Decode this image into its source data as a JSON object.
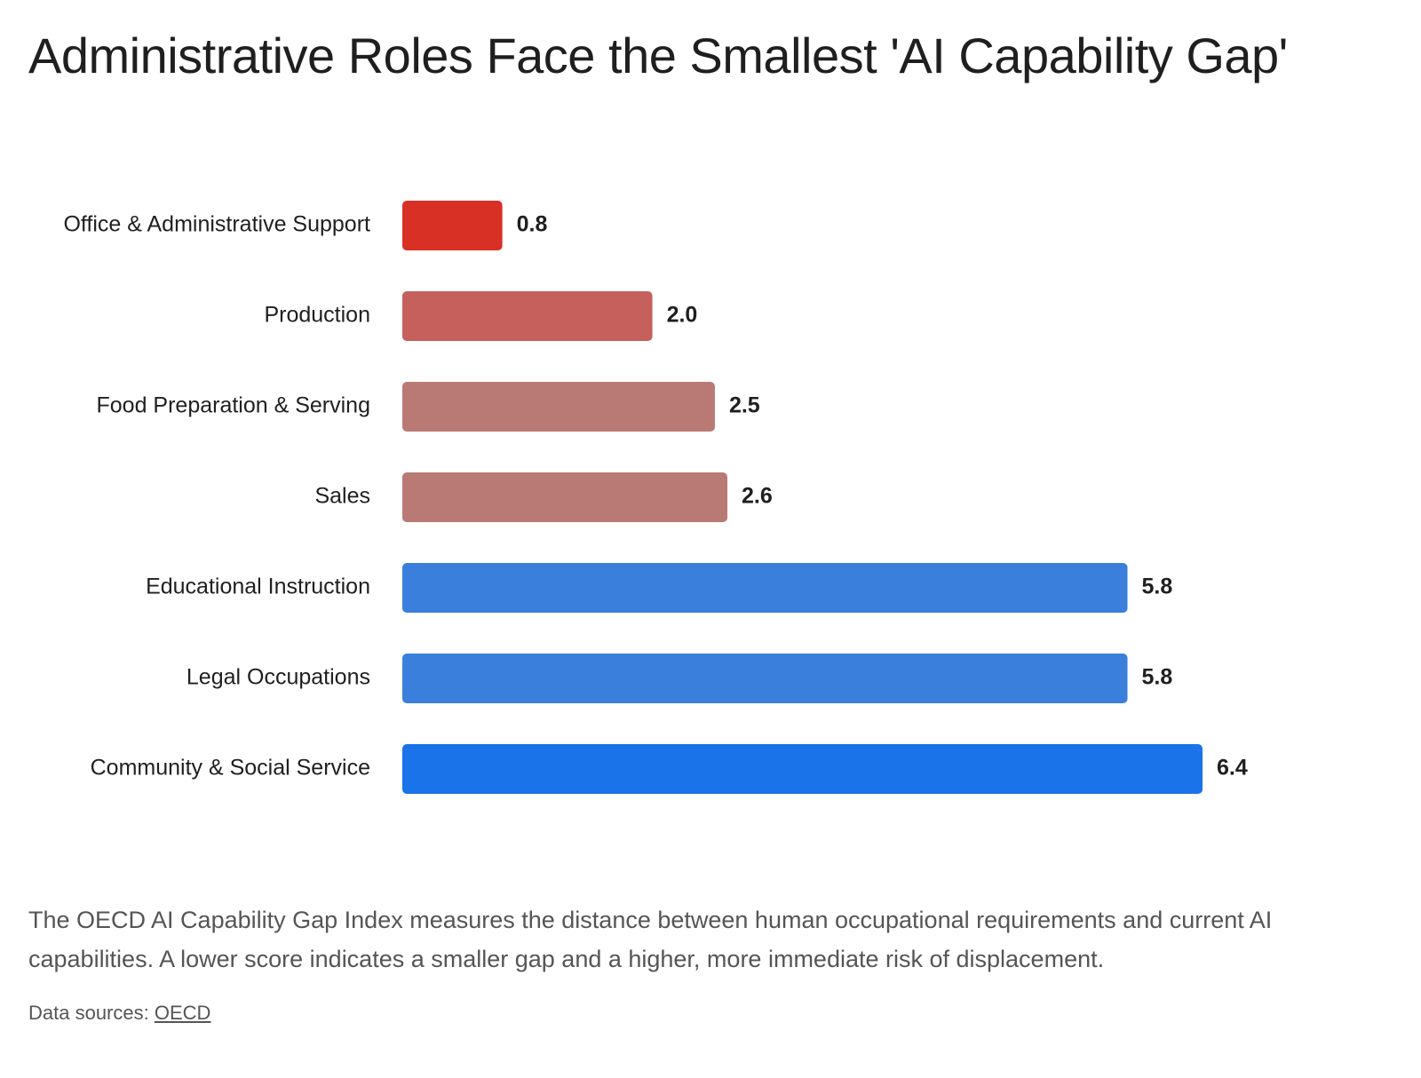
{
  "chart_data": {
    "type": "bar",
    "orientation": "horizontal",
    "title": "Administrative Roles Face the Smallest 'AI Capability Gap'",
    "categories": [
      "Office & Administrative Support",
      "Production",
      "Food Preparation & Serving",
      "Sales",
      "Educational Instruction",
      "Legal Occupations",
      "Community & Social Service"
    ],
    "values": [
      0.8,
      2.0,
      2.5,
      2.6,
      5.8,
      5.8,
      6.4
    ],
    "value_labels": [
      "0.8",
      "2.0",
      "2.5",
      "2.6",
      "5.8",
      "5.8",
      "6.4"
    ],
    "colors": [
      "#d93025",
      "#c5605c",
      "#b97a76",
      "#b97a76",
      "#3a7fdc",
      "#3a7fdc",
      "#1a73e8"
    ],
    "caption": "The OECD AI Capability Gap Index measures the distance between human occupational requirements and current AI capabilities. A lower score indicates a smaller gap and a higher, more immediate risk of displacement.",
    "source": {
      "label": "Data sources:",
      "link": "OECD"
    }
  }
}
